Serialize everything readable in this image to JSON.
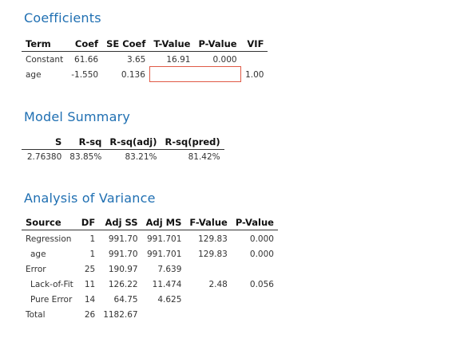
{
  "coefficients": {
    "title": "Coefficients",
    "headers": [
      "Term",
      "Coef",
      "SE Coef",
      "T-Value",
      "P-Value",
      "VIF"
    ],
    "rows": [
      [
        "Constant",
        "61.66",
        "3.65",
        "16.91",
        "0.000",
        ""
      ],
      [
        "age",
        "-1.550",
        "0.136",
        "",
        "",
        "1.00"
      ]
    ]
  },
  "model_summary": {
    "title": "Model Summary",
    "headers": [
      "S",
      "R-sq",
      "R-sq(adj)",
      "R-sq(pred)"
    ],
    "rows": [
      [
        "2.76380",
        "83.85%",
        "83.21%",
        "81.42%"
      ]
    ]
  },
  "anova": {
    "title": "Analysis of Variance",
    "headers": [
      "Source",
      "DF",
      "Adj SS",
      "Adj MS",
      "F-Value",
      "P-Value"
    ],
    "rows": [
      [
        "Regression",
        "1",
        "991.70",
        "991.701",
        "129.83",
        "0.000"
      ],
      [
        "age",
        "1",
        "991.70",
        "991.701",
        "129.83",
        "0.000"
      ],
      [
        "Error",
        "25",
        "190.97",
        "7.639",
        "",
        ""
      ],
      [
        "Lack-of-Fit",
        "11",
        "126.22",
        "11.474",
        "2.48",
        "0.056"
      ],
      [
        "Pure Error",
        "14",
        "64.75",
        "4.625",
        "",
        ""
      ],
      [
        "Total",
        "26",
        "1182.67",
        "",
        "",
        ""
      ]
    ]
  }
}
